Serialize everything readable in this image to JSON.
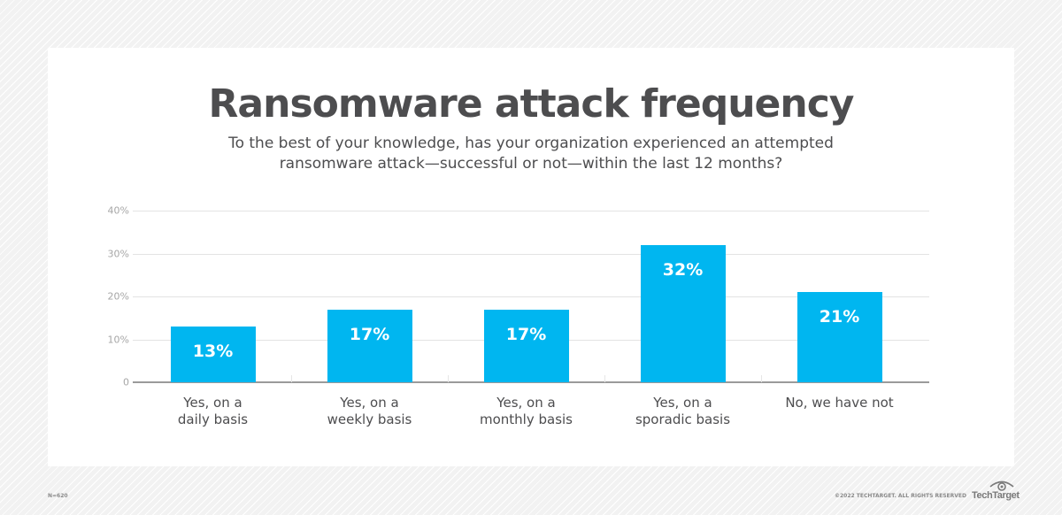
{
  "title": "Ransomware attack frequency",
  "subtitle_line1": "To the best of your knowledge, has your organization experienced an attempted",
  "subtitle_line2": "ransomware attack—successful or not—within the last 12 months?",
  "y_ticks": [
    "0",
    "10%",
    "20%",
    "30%",
    "40%"
  ],
  "bars": [
    {
      "category": "Yes, on a\ndaily basis",
      "value": 13,
      "label": "13%"
    },
    {
      "category": "Yes, on a\nweekly basis",
      "value": 17,
      "label": "17%"
    },
    {
      "category": "Yes, on a\nmonthly basis",
      "value": 17,
      "label": "17%"
    },
    {
      "category": "Yes, on a\nsporadic basis",
      "value": 32,
      "label": "32%"
    },
    {
      "category": "No, we have not",
      "value": 21,
      "label": "21%"
    }
  ],
  "footer": {
    "note": "N=620",
    "copyright": "©2022 TECHTARGET. ALL RIGHTS RESERVED",
    "logo_text": "TechTarget"
  },
  "colors": {
    "bar": "#00b6f0",
    "title": "#4d4d4f",
    "gridline": "#e3e3e3"
  },
  "chart_data": {
    "type": "bar",
    "title": "Ransomware attack frequency",
    "subtitle": "To the best of your knowledge, has your organization experienced an attempted ransomware attack—successful or not—within the last 12 months?",
    "categories": [
      "Yes, on a daily basis",
      "Yes, on a weekly basis",
      "Yes, on a monthly basis",
      "Yes, on a sporadic basis",
      "No, we have not"
    ],
    "values": [
      13,
      17,
      17,
      32,
      21
    ],
    "value_labels": [
      "13%",
      "17%",
      "17%",
      "32%",
      "21%"
    ],
    "xlabel": "",
    "ylabel": "",
    "ylim": [
      0,
      40
    ],
    "y_ticks": [
      0,
      10,
      20,
      30,
      40
    ],
    "y_tick_labels": [
      "0",
      "10%",
      "20%",
      "30%",
      "40%"
    ],
    "grid": true,
    "legend": "none",
    "note": "N=620"
  }
}
